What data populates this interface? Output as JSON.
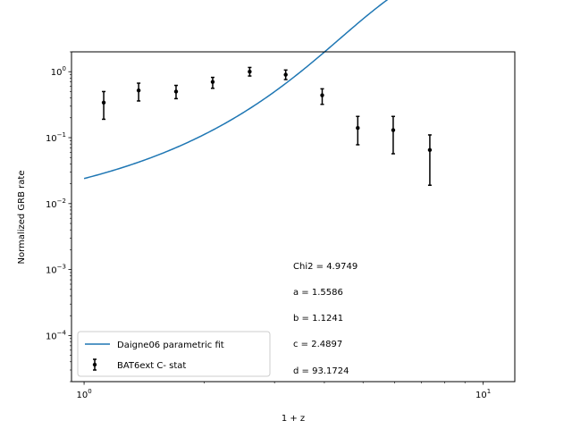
{
  "chart_data": {
    "type": "scatter",
    "xlabel": "1 + z",
    "ylabel": "Normalized GRB rate",
    "xscale": "log",
    "yscale": "log",
    "xlim": [
      0.93,
      12.0
    ],
    "ylim": [
      2e-05,
      2.0
    ],
    "grid": false,
    "legend_position": "lower-left",
    "x_ticks": [
      {
        "value": 1,
        "base": "10",
        "exp": "0"
      },
      {
        "value": 10,
        "base": "10",
        "exp": "1"
      }
    ],
    "y_ticks": [
      {
        "value": 0.0001,
        "base": "10",
        "exp": "−4"
      },
      {
        "value": 0.001,
        "base": "10",
        "exp": "−3"
      },
      {
        "value": 0.01,
        "base": "10",
        "exp": "−2"
      },
      {
        "value": 0.1,
        "base": "10",
        "exp": "−1"
      },
      {
        "value": 1,
        "base": "10",
        "exp": "0"
      }
    ],
    "series": [
      {
        "name": "Daigne06 parametric fit",
        "kind": "line",
        "color": "#1f77b4",
        "params": {
          "a": 1.5586,
          "b": 1.1241,
          "c": 2.4897,
          "d": 93.1724
        },
        "x_range": [
          1.0,
          11.1
        ]
      },
      {
        "name": "BAT6ext C- stat",
        "kind": "errorbar",
        "color": "#000000",
        "points": [
          {
            "x": 1.12,
            "y": 0.34,
            "ylo": 0.19,
            "yhi": 0.5
          },
          {
            "x": 1.37,
            "y": 0.52,
            "ylo": 0.36,
            "yhi": 0.67
          },
          {
            "x": 1.7,
            "y": 0.5,
            "ylo": 0.39,
            "yhi": 0.62
          },
          {
            "x": 2.1,
            "y": 0.7,
            "ylo": 0.56,
            "yhi": 0.82
          },
          {
            "x": 2.6,
            "y": 1.0,
            "ylo": 0.86,
            "yhi": 1.16
          },
          {
            "x": 3.2,
            "y": 0.9,
            "ylo": 0.76,
            "yhi": 1.06
          },
          {
            "x": 3.95,
            "y": 0.44,
            "ylo": 0.32,
            "yhi": 0.55
          },
          {
            "x": 4.85,
            "y": 0.14,
            "ylo": 0.078,
            "yhi": 0.21
          },
          {
            "x": 5.95,
            "y": 0.13,
            "ylo": 0.057,
            "yhi": 0.21
          },
          {
            "x": 7.35,
            "y": 0.065,
            "ylo": 0.019,
            "yhi": 0.11
          }
        ]
      }
    ],
    "annotations": [
      "Chi2 = 4.9749",
      "a = 1.5586",
      "b = 1.1241",
      "c = 2.4897",
      "d = 93.1724"
    ]
  }
}
